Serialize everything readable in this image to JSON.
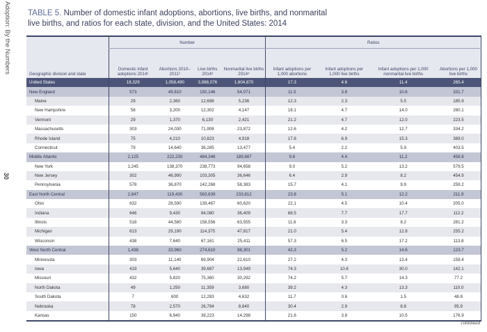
{
  "sidebar": {
    "running_head": "Adoption: By the Numbers",
    "page_number": "30"
  },
  "title": {
    "label": "TABLE 5.",
    "text": "Number of domestic infant adoptions, abortions, live births, and nonmarital live births, and ratios for each state, division, and the United States: 2014"
  },
  "table": {
    "group_headers": [
      "Number",
      "Ratios"
    ],
    "columns": [
      "Geographic division and state",
      "Domestic infant adoptions 2014¹",
      "Abortions 2010–2011²",
      "Live births 2014³",
      "Nonmarital live births 2014⁴",
      "Infant adoptions per 1,000 abortions",
      "Infant adoptions per 1,000 live births",
      "Infant adoptions per 1,000 nonmarital live births",
      "Abortions per 1,000 live births"
    ],
    "rows": [
      {
        "type": "us",
        "cells": [
          "United States",
          "18,329",
          "1,058,490",
          "3,988,076",
          "1,604,870",
          "17.3",
          "4.6",
          "11.4",
          "265.4"
        ]
      },
      {
        "type": "div",
        "cells": [
          "New England",
          "573",
          "49,810",
          "150,146",
          "54,071",
          "11.5",
          "3.8",
          "10.6",
          "331.7"
        ]
      },
      {
        "type": "alt",
        "cells": [
          "Maine",
          "29",
          "2,360",
          "12,698",
          "5,236",
          "12.3",
          "2.3",
          "5.5",
          "185.9"
        ]
      },
      {
        "type": "plain",
        "cells": [
          "New Hampshire",
          "58",
          "3,200",
          "12,302",
          "4,147",
          "18.1",
          "4.7",
          "14.0",
          "260.1"
        ]
      },
      {
        "type": "alt",
        "cells": [
          "Vermont",
          "29",
          "1,370",
          "6,130",
          "2,421",
          "21.2",
          "4.7",
          "12.0",
          "223.5"
        ]
      },
      {
        "type": "plain",
        "cells": [
          "Massachusetts",
          "303",
          "24,030",
          "71,908",
          "23,872",
          "12.6",
          "4.2",
          "12.7",
          "334.2"
        ]
      },
      {
        "type": "alt",
        "cells": [
          "Rhode Island",
          "75",
          "4,210",
          "10,823",
          "4,918",
          "17.8",
          "6.9",
          "15.3",
          "389.0"
        ]
      },
      {
        "type": "plain",
        "cells": [
          "Connecticut",
          "79",
          "14,640",
          "36,285",
          "13,477",
          "5.4",
          "2.2",
          "5.9",
          "403.5"
        ]
      },
      {
        "type": "div",
        "cells": [
          "Middle Atlantic",
          "2,125",
          "222,230",
          "484,346",
          "189,687",
          "9.6",
          "4.4",
          "11.2",
          "458.8"
        ]
      },
      {
        "type": "plain",
        "cells": [
          "New York",
          "1,245",
          "138,370",
          "238,773",
          "94,658",
          "9.0",
          "5.2",
          "13.2",
          "579.5"
        ]
      },
      {
        "type": "alt",
        "cells": [
          "New Jersey",
          "302",
          "46,990",
          "103,305",
          "36,646",
          "6.4",
          "2.9",
          "8.2",
          "454.9"
        ]
      },
      {
        "type": "plain",
        "cells": [
          "Pennsylvania",
          "578",
          "36,870",
          "142,268",
          "58,383",
          "15.7",
          "4.1",
          "9.9",
          "259.2"
        ]
      },
      {
        "type": "div",
        "cells": [
          "East North Central",
          "2,847",
          "119,430",
          "563,639",
          "233,812",
          "23.8",
          "5.1",
          "12.2",
          "211.9"
        ]
      },
      {
        "type": "plain",
        "cells": [
          "Ohio",
          "632",
          "28,590",
          "139,467",
          "60,620",
          "22.1",
          "4.5",
          "10.4",
          "205.0"
        ]
      },
      {
        "type": "alt",
        "cells": [
          "Indiana",
          "646",
          "9,430",
          "84,080",
          "36,409",
          "68.5",
          "7.7",
          "17.7",
          "112.2"
        ]
      },
      {
        "type": "plain",
        "cells": [
          "Illinois",
          "518",
          "44,580",
          "158,556",
          "63,555",
          "11.6",
          "3.3",
          "8.2",
          "281.2"
        ]
      },
      {
        "type": "alt",
        "cells": [
          "Michigan",
          "613",
          "29,190",
          "114,375",
          "47,817",
          "21.0",
          "5.4",
          "12.8",
          "255.2"
        ]
      },
      {
        "type": "plain",
        "cells": [
          "Wisconsin",
          "438",
          "7,640",
          "67,161",
          "25,411",
          "57.3",
          "6.5",
          "17.2",
          "113.8"
        ]
      },
      {
        "type": "div",
        "cells": [
          "West North Central",
          "1,438",
          "33,960",
          "274,610",
          "98,301",
          "42.3",
          "5.2",
          "14.6",
          "123.7"
        ]
      },
      {
        "type": "plain",
        "cells": [
          "Minnesota",
          "303",
          "11,140",
          "69,904",
          "22,610",
          "27.2",
          "4.3",
          "13.4",
          "159.4"
        ]
      },
      {
        "type": "alt",
        "cells": [
          "Iowa",
          "419",
          "5,640",
          "39,687",
          "13,949",
          "74.3",
          "10.6",
          "30.0",
          "142.1"
        ]
      },
      {
        "type": "plain",
        "cells": [
          "Missouri",
          "432",
          "5,820",
          "75,360",
          "30,292",
          "74.2",
          "5.7",
          "14.3",
          "77.2"
        ]
      },
      {
        "type": "alt",
        "cells": [
          "North Dakota",
          "49",
          "1,250",
          "11,359",
          "3,680",
          "39.2",
          "4.3",
          "13.3",
          "110.0"
        ]
      },
      {
        "type": "plain",
        "cells": [
          "South Dakota",
          "7",
          "600",
          "12,283",
          "4,632",
          "11.7",
          "0.6",
          "1.5",
          "48.8"
        ]
      },
      {
        "type": "alt",
        "cells": [
          "Nebraska",
          "78",
          "2,570",
          "26,794",
          "8,840",
          "30.4",
          "2.9",
          "8.8",
          "95.9"
        ]
      },
      {
        "type": "plain",
        "cells": [
          "Kansas",
          "150",
          "6,940",
          "39,223",
          "14,298",
          "21.6",
          "3.8",
          "10.5",
          "176.9"
        ]
      }
    ]
  },
  "footer": {
    "continued": "continued"
  },
  "colors": {
    "us_row": "#4c5578",
    "division_row": "#c3c6d4",
    "alt_row": "#e7e8ee",
    "title_label": "#5a6b9a"
  }
}
